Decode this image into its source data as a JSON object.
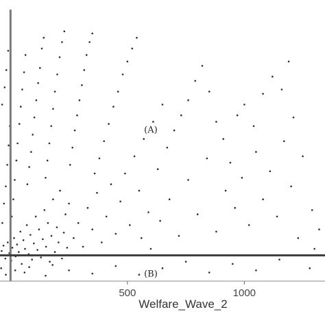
{
  "chart_data": {
    "type": "scatter",
    "xlabel": "Welfare_Wave_2",
    "ylabel": "",
    "x_ticks": [
      500,
      1000
    ],
    "xlim": [
      -45,
      1345
    ],
    "ylim": [
      -120,
      1090
    ],
    "grid": false,
    "legend": "none",
    "reference_lines": {
      "vertical_x": 0,
      "horizontal_y": 0
    },
    "annotations": [
      {
        "text": "(A)",
        "x": 600,
        "y": 570
      },
      {
        "text": "(B)",
        "x": 600,
        "y": -100
      }
    ],
    "point_color": "#2b2b2b",
    "line_color": "#7a7a7a",
    "hline_color": "#3a3a3a",
    "series": [
      {
        "points": [
          [
            -38,
            20
          ],
          [
            -30,
            45
          ],
          [
            -22,
            -15
          ],
          [
            -12,
            60
          ],
          [
            -5,
            10
          ],
          [
            3,
            -25
          ],
          [
            8,
            35
          ],
          [
            15,
            80
          ],
          [
            22,
            -5
          ],
          [
            28,
            50
          ],
          [
            35,
            15
          ],
          [
            42,
            110
          ],
          [
            48,
            -40
          ],
          [
            55,
            70
          ],
          [
            62,
            30
          ],
          [
            70,
            140
          ],
          [
            78,
            5
          ],
          [
            85,
            95
          ],
          [
            92,
            -20
          ],
          [
            100,
            55
          ],
          [
            108,
            180
          ],
          [
            115,
            25
          ],
          [
            122,
            120
          ],
          [
            130,
            -10
          ],
          [
            138,
            75
          ],
          [
            145,
            210
          ],
          [
            152,
            40
          ],
          [
            160,
            150
          ],
          [
            168,
            -30
          ],
          [
            175,
            90
          ],
          [
            182,
            260
          ],
          [
            190,
            15
          ],
          [
            198,
            130
          ],
          [
            205,
            60
          ],
          [
            212,
            300
          ],
          [
            220,
            -15
          ],
          [
            228,
            105
          ],
          [
            235,
            190
          ],
          [
            242,
            35
          ],
          [
            250,
            240
          ],
          [
            -35,
            150
          ],
          [
            -28,
            240
          ],
          [
            -20,
            320
          ],
          [
            -14,
            420
          ],
          [
            -8,
            510
          ],
          [
            -3,
            600
          ],
          [
            -36,
            700
          ],
          [
            -25,
            780
          ],
          [
            -18,
            860
          ],
          [
            -10,
            950
          ],
          [
            5,
            180
          ],
          [
            12,
            260
          ],
          [
            18,
            350
          ],
          [
            25,
            440
          ],
          [
            30,
            520
          ],
          [
            38,
            610
          ],
          [
            44,
            690
          ],
          [
            50,
            770
          ],
          [
            58,
            850
          ],
          [
            64,
            930
          ],
          [
            72,
            330
          ],
          [
            80,
            410
          ],
          [
            88,
            480
          ],
          [
            95,
            560
          ],
          [
            102,
            640
          ],
          [
            110,
            720
          ],
          [
            118,
            800
          ],
          [
            126,
            870
          ],
          [
            134,
            960
          ],
          [
            142,
            1010
          ],
          [
            150,
            360
          ],
          [
            158,
            440
          ],
          [
            166,
            520
          ],
          [
            174,
            600
          ],
          [
            182,
            680
          ],
          [
            190,
            760
          ],
          [
            200,
            840
          ],
          [
            210,
            920
          ],
          [
            220,
            990
          ],
          [
            230,
            1040
          ],
          [
            255,
            420
          ],
          [
            265,
            500
          ],
          [
            275,
            580
          ],
          [
            285,
            650
          ],
          [
            295,
            720
          ],
          [
            305,
            790
          ],
          [
            315,
            860
          ],
          [
            325,
            930
          ],
          [
            338,
            990
          ],
          [
            350,
            1030
          ],
          [
            270,
            80
          ],
          [
            290,
            150
          ],
          [
            310,
            40
          ],
          [
            330,
            220
          ],
          [
            350,
            120
          ],
          [
            370,
            290
          ],
          [
            390,
            60
          ],
          [
            410,
            180
          ],
          [
            430,
            330
          ],
          [
            450,
            100
          ],
          [
            360,
            380
          ],
          [
            380,
            450
          ],
          [
            400,
            530
          ],
          [
            420,
            610
          ],
          [
            440,
            690
          ],
          [
            460,
            760
          ],
          [
            480,
            840
          ],
          [
            500,
            900
          ],
          [
            520,
            960
          ],
          [
            540,
            1010
          ],
          [
            470,
            250
          ],
          [
            490,
            380
          ],
          [
            510,
            140
          ],
          [
            530,
            460
          ],
          [
            550,
            300
          ],
          [
            570,
            540
          ],
          [
            590,
            200
          ],
          [
            610,
            620
          ],
          [
            630,
            400
          ],
          [
            650,
            700
          ],
          [
            560,
            80
          ],
          [
            600,
            30
          ],
          [
            640,
            160
          ],
          [
            680,
            260
          ],
          [
            720,
            90
          ],
          [
            760,
            350
          ],
          [
            800,
            190
          ],
          [
            840,
            450
          ],
          [
            880,
            110
          ],
          [
            920,
            300
          ],
          [
            670,
            500
          ],
          [
            700,
            580
          ],
          [
            730,
            650
          ],
          [
            760,
            720
          ],
          [
            790,
            810
          ],
          [
            820,
            880
          ],
          [
            850,
            760
          ],
          [
            880,
            620
          ],
          [
            910,
            540
          ],
          [
            940,
            430
          ],
          [
            960,
            220
          ],
          [
            990,
            360
          ],
          [
            1020,
            140
          ],
          [
            1050,
            480
          ],
          [
            1080,
            260
          ],
          [
            1110,
            390
          ],
          [
            1140,
            180
          ],
          [
            1170,
            530
          ],
          [
            1200,
            320
          ],
          [
            1230,
            80
          ],
          [
            970,
            650
          ],
          [
            1000,
            700
          ],
          [
            1040,
            600
          ],
          [
            1080,
            750
          ],
          [
            1120,
            830
          ],
          [
            1160,
            770
          ],
          [
            1190,
            900
          ],
          [
            1210,
            640
          ],
          [
            1250,
            460
          ],
          [
            1290,
            210
          ],
          [
            1300,
            30
          ],
          [
            1320,
            120
          ],
          [
            1280,
            -60
          ],
          [
            1150,
            -20
          ],
          [
            1050,
            -70
          ],
          [
            950,
            -40
          ],
          [
            850,
            -80
          ],
          [
            750,
            -30
          ],
          [
            650,
            -60
          ],
          [
            550,
            -90
          ],
          [
            450,
            -50
          ],
          [
            350,
            -85
          ],
          [
            250,
            -70
          ],
          [
            150,
            -95
          ],
          [
            60,
            -80
          ],
          [
            -20,
            -90
          ],
          [
            -40,
            -60
          ],
          [
            20,
            -70
          ],
          [
            80,
            -55
          ],
          [
            180,
            -45
          ]
        ]
      }
    ]
  }
}
